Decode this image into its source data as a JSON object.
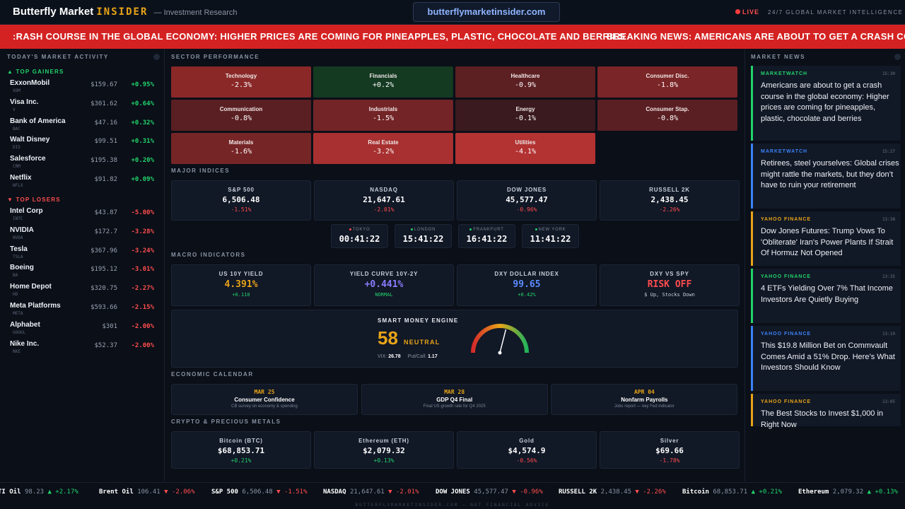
{
  "header": {
    "brand_main": "Butterfly Market",
    "brand_insider": "INSIDER",
    "brand_sub": "— Investment Research",
    "url": "butterflymarketinsider.com",
    "live": "LIVE",
    "intel": "24/7 GLOBAL MARKET INTELLIGENCE"
  },
  "banner": {
    "a": ":RASH COURSE IN THE GLOBAL ECONOMY: HIGHER PRICES ARE COMING FOR PINEAPPLES, PLASTIC, CHOCOLATE AND BERRIES",
    "b": "BREAKING NEWS: AMERICANS ARE ABOUT TO GET A CRASH COURSE"
  },
  "left": {
    "title": "TODAY'S MARKET ACTIVITY",
    "gainers_label": "▲ TOP GAINERS",
    "losers_label": "▼ TOP LOSERS",
    "gainers": [
      {
        "name": "ExxonMobil",
        "ticker": "XOM",
        "price": "$159.67",
        "change": "+0.95%"
      },
      {
        "name": "Visa Inc.",
        "ticker": "V",
        "price": "$301.62",
        "change": "+0.64%"
      },
      {
        "name": "Bank of America",
        "ticker": "BAC",
        "price": "$47.16",
        "change": "+0.32%"
      },
      {
        "name": "Walt Disney",
        "ticker": "DIS",
        "price": "$99.51",
        "change": "+0.31%"
      },
      {
        "name": "Salesforce",
        "ticker": "CRM",
        "price": "$195.38",
        "change": "+0.20%"
      },
      {
        "name": "Netflix",
        "ticker": "NFLX",
        "price": "$91.82",
        "change": "+0.09%"
      }
    ],
    "losers": [
      {
        "name": "Intel Corp",
        "ticker": "INTC",
        "price": "$43.87",
        "change": "-5.00%"
      },
      {
        "name": "NVIDIA",
        "ticker": "NVDA",
        "price": "$172.7",
        "change": "-3.28%"
      },
      {
        "name": "Tesla",
        "ticker": "TSLA",
        "price": "$367.96",
        "change": "-3.24%"
      },
      {
        "name": "Boeing",
        "ticker": "BA",
        "price": "$195.12",
        "change": "-3.01%"
      },
      {
        "name": "Home Depot",
        "ticker": "HD",
        "price": "$320.75",
        "change": "-2.27%"
      },
      {
        "name": "Meta Platforms",
        "ticker": "META",
        "price": "$593.66",
        "change": "-2.15%"
      },
      {
        "name": "Alphabet",
        "ticker": "GOOGL",
        "price": "$301",
        "change": "-2.00%"
      },
      {
        "name": "Nike Inc.",
        "ticker": "NKE",
        "price": "$52.37",
        "change": "-2.00%"
      }
    ]
  },
  "center": {
    "sector_title": "SECTOR PERFORMANCE",
    "sectors": [
      {
        "name": "Technology",
        "value": "-2.3%",
        "color": "#8a2828"
      },
      {
        "name": "Financials",
        "value": "+0.2%",
        "color": "#143a22"
      },
      {
        "name": "Healthcare",
        "value": "-0.9%",
        "color": "#5c1f22"
      },
      {
        "name": "Consumer Disc.",
        "value": "-1.8%",
        "color": "#7a2527"
      },
      {
        "name": "Communication",
        "value": "-0.8%",
        "color": "#5a1f22"
      },
      {
        "name": "Industrials",
        "value": "-1.5%",
        "color": "#732426"
      },
      {
        "name": "Energy",
        "value": "-0.1%",
        "color": "#3a1a1e"
      },
      {
        "name": "Consumer Stap.",
        "value": "-0.8%",
        "color": "#5a1f22"
      },
      {
        "name": "Materials",
        "value": "-1.6%",
        "color": "#762527"
      },
      {
        "name": "Real Estate",
        "value": "-3.2%",
        "color": "#a83030"
      },
      {
        "name": "Utilities",
        "value": "-4.1%",
        "color": "#b33232"
      }
    ],
    "indices_title": "MAJOR INDICES",
    "indices": [
      {
        "name": "S&P 500",
        "value": "6,506.48",
        "change": "-1.51%"
      },
      {
        "name": "NASDAQ",
        "value": "21,647.61",
        "change": "-2.01%"
      },
      {
        "name": "DOW JONES",
        "value": "45,577.47",
        "change": "-0.96%"
      },
      {
        "name": "RUSSELL 2K",
        "value": "2,438.45",
        "change": "-2.26%"
      }
    ],
    "clocks": [
      {
        "city": "TOKYO",
        "time": "00:41:22",
        "dot": "#ff4d4d"
      },
      {
        "city": "LONDON",
        "time": "15:41:22",
        "dot": "#22d36a"
      },
      {
        "city": "FRANKFURT",
        "time": "16:41:22",
        "dot": "#22d36a"
      },
      {
        "city": "NEW YORK",
        "time": "11:41:22",
        "dot": "#22d36a"
      }
    ],
    "macro_title": "MACRO INDICATORS",
    "macro": [
      {
        "name": "US 10Y YIELD",
        "value": "4.391%",
        "sub": "+0.110",
        "color": "#e8a417",
        "subcolor": "#22d36a"
      },
      {
        "name": "YIELD CURVE 10Y-2Y",
        "value": "+0.441%",
        "sub": "NORMAL",
        "color": "#8b7cff",
        "subcolor": "#22d36a"
      },
      {
        "name": "DXY DOLLAR INDEX",
        "value": "99.65",
        "sub": "+0.42%",
        "color": "#5b8cff",
        "subcolor": "#22d36a"
      },
      {
        "name": "DXY VS SPY",
        "value": "RISK OFF",
        "sub": "$ Up, Stocks Down",
        "color": "#ff4d4d",
        "subcolor": "#c7ceda"
      }
    ],
    "engine": {
      "title": "SMART MONEY ENGINE",
      "score": "58",
      "score_value": 58,
      "state": "NEUTRAL",
      "vix_label": "VIX:",
      "vix": "26.78",
      "pc_label": "Put/Call:",
      "pc": "1.17"
    },
    "calendar_title": "ECONOMIC CALENDAR",
    "calendar": [
      {
        "date": "MAR 25",
        "event": "Consumer Confidence",
        "desc": "CB survey on economy & spending"
      },
      {
        "date": "MAR 28",
        "event": "GDP Q4 Final",
        "desc": "Final US growth rate for Q4 2025"
      },
      {
        "date": "APR 04",
        "event": "Nonfarm Payrolls",
        "desc": "Jobs report — key Fed indicator"
      }
    ],
    "crypto_title": "CRYPTO & PRECIOUS METALS",
    "crypto": [
      {
        "name": "Bitcoin (BTC)",
        "value": "$68,853.71",
        "change": "+0.21%",
        "dir": "up"
      },
      {
        "name": "Ethereum (ETH)",
        "value": "$2,079.32",
        "change": "+0.13%",
        "dir": "up"
      },
      {
        "name": "Gold",
        "value": "$4,574.9",
        "change": "-0.56%",
        "dir": "dn"
      },
      {
        "name": "Silver",
        "value": "$69.66",
        "change": "-1.78%",
        "dir": "dn"
      }
    ]
  },
  "right": {
    "title": "MARKET NEWS",
    "news": [
      {
        "source": "MARKETWATCH",
        "time": "15:30",
        "headline": "Americans are about to get a crash course in the global economy: Higher prices are coming for pineapples, plastic, chocolate and berries",
        "color": "#22d36a"
      },
      {
        "source": "MARKETWATCH",
        "time": "15:27",
        "headline": "Retirees, steel yourselves: Global crises might rattle the markets, but they don’t have to ruin your retirement",
        "color": "#3b82f6"
      },
      {
        "source": "YAHOO FINANCE",
        "time": "13:38",
        "headline": "Dow Jones Futures: Trump Vows To 'Obliterate' Iran's Power Plants If Strait Of Hormuz Not Opened",
        "color": "#e8a417"
      },
      {
        "source": "YAHOO FINANCE",
        "time": "13:35",
        "headline": "4 ETFs Yielding Over 7% That Income Investors Are Quietly Buying",
        "color": "#22d36a"
      },
      {
        "source": "YAHOO FINANCE",
        "time": "13:10",
        "headline": "This $19.8 Million Bet on Commvault Comes Amid a 51% Drop. Here’s What Investors Should Know",
        "color": "#3b82f6"
      },
      {
        "source": "YAHOO FINANCE",
        "time": "13:05",
        "headline": "The Best Stocks to Invest $1,000 in Right Now",
        "color": "#e8a417"
      }
    ]
  },
  "ticker": [
    {
      "name": "TI Oil",
      "price": "98.23",
      "change": "▲ +2.17%",
      "dir": "up"
    },
    {
      "name": "Brent Oil",
      "price": "106.41",
      "change": "▼ -2.06%",
      "dir": "dn"
    },
    {
      "name": "S&P 500",
      "price": "6,506.48",
      "change": "▼ -1.51%",
      "dir": "dn"
    },
    {
      "name": "NASDAQ",
      "price": "21,647.61",
      "change": "▼ -2.01%",
      "dir": "dn"
    },
    {
      "name": "DOW JONES",
      "price": "45,577.47",
      "change": "▼ -0.96%",
      "dir": "dn"
    },
    {
      "name": "RUSSELL 2K",
      "price": "2,438.45",
      "change": "▼ -2.26%",
      "dir": "dn"
    },
    {
      "name": "Bitcoin",
      "price": "68,853.71",
      "change": "▲ +0.21%",
      "dir": "up"
    },
    {
      "name": "Ethereum",
      "price": "2,079.32",
      "change": "▲ +0.13%",
      "dir": "up"
    }
  ],
  "footer": "BUTTERFLYMARKETINSIDER.COM — NOT FINANCIAL ADVICE"
}
